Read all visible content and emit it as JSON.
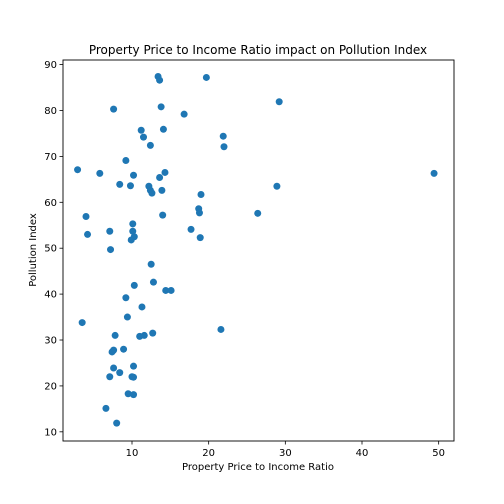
{
  "chart_data": {
    "type": "scatter",
    "title": "Property Price to Income Ratio impact on Pollution Index",
    "xlabel": "Property Price to Income Ratio",
    "ylabel": "Pollution Index",
    "xlim": [
      1.0,
      52.0
    ],
    "ylim": [
      8.0,
      91.0
    ],
    "xticks": [
      10,
      20,
      30,
      40,
      50
    ],
    "yticks": [
      10,
      20,
      30,
      40,
      50,
      60,
      70,
      80,
      90
    ],
    "grid": false,
    "marker_color": "#1f77b4",
    "series": [
      {
        "x": [
          13.4,
          19.7,
          13.6,
          7.6,
          13.8,
          16.8,
          29.2,
          11.2,
          14.1,
          21.9,
          11.5,
          12.4,
          22.0,
          9.2,
          2.9,
          14.3,
          5.8,
          10.2,
          13.6,
          8.4,
          9.8,
          12.2,
          12.4,
          12.6,
          13.9,
          19.0,
          28.9,
          49.4,
          18.7,
          18.8,
          26.4,
          4.0,
          10.1,
          14.0,
          7.1,
          17.7,
          10.1,
          4.2,
          18.9,
          10.3,
          9.9,
          7.2,
          12.5,
          12.8,
          10.3,
          14.4,
          15.1,
          9.2,
          11.3,
          9.4,
          3.5,
          21.6,
          12.7,
          11.6,
          11.0,
          7.8,
          8.9,
          7.6,
          7.4,
          10.2,
          7.6,
          8.4,
          7.1,
          10.0,
          10.2,
          9.5,
          10.2,
          6.6,
          8.0
        ],
        "y": [
          87.4,
          87.2,
          86.6,
          80.3,
          80.8,
          79.2,
          81.9,
          75.7,
          75.9,
          74.4,
          74.2,
          72.4,
          72.1,
          69.1,
          67.1,
          66.5,
          66.3,
          65.9,
          65.4,
          63.9,
          63.6,
          63.5,
          62.6,
          62.0,
          62.6,
          61.7,
          63.5,
          66.3,
          58.6,
          57.7,
          57.6,
          56.9,
          55.3,
          57.2,
          53.7,
          54.1,
          53.7,
          53.0,
          52.3,
          52.5,
          51.8,
          49.7,
          46.5,
          42.6,
          41.9,
          40.8,
          40.8,
          39.2,
          37.2,
          35.0,
          33.8,
          32.3,
          31.5,
          31.0,
          30.8,
          31.0,
          28.0,
          27.8,
          27.4,
          24.3,
          23.9,
          22.9,
          22.0,
          22.0,
          21.9,
          18.3,
          18.1,
          15.1,
          11.9
        ]
      }
    ]
  }
}
